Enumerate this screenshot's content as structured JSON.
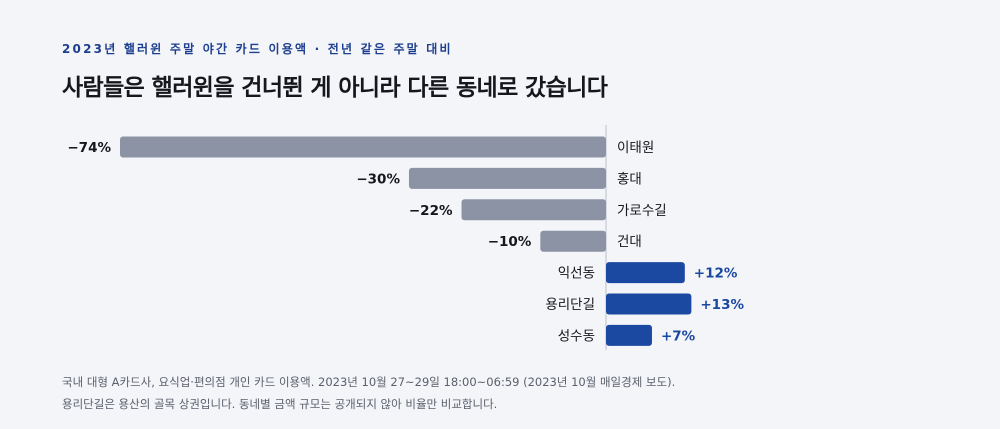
{
  "kicker": "2023년 핼러윈 주말 야간 카드 이용액 · 전년 같은 주말 대비",
  "title": "사람들은 핼러윈을 건너뛴 게 아니라 다른 동네로 갔습니다",
  "notes": {
    "line1": "국내 대형 A카드사, 요식업·편의점 개인 카드 이용액. 2023년 10월 27~29일 18:00~06:59 (2023년 10월 매일경제 보도).",
    "line2": "용리단길은 용산의 골목 상권입니다. 동네별 금액 규모는 공개되지 않아 비율만 비교합니다."
  },
  "colors": {
    "negative": "#8b93a5",
    "positive": "#1b48a1",
    "positive_label": "#1b48a1",
    "negative_label": "#15171c",
    "axis": "#c5c9d3"
  },
  "chart_data": {
    "type": "bar",
    "orientation": "horizontal",
    "categories": [
      "이태원",
      "홍대",
      "가로수길",
      "건대",
      "익선동",
      "용리단길",
      "성수동"
    ],
    "values": [
      -74,
      -30,
      -22,
      -10,
      12,
      13,
      7
    ],
    "labels": [
      "−74%",
      "−30%",
      "−22%",
      "−10%",
      "+12%",
      "+13%",
      "+7%"
    ],
    "xlim": [
      -74,
      13
    ],
    "grid": false,
    "legend": "none"
  }
}
